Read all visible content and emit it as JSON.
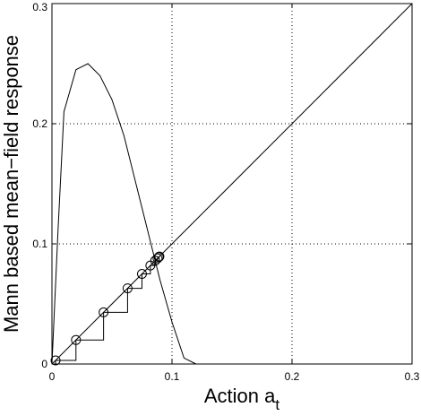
{
  "chart_data": {
    "type": "line",
    "xlabel": "Action a",
    "xlabel_subscript": "t",
    "ylabel": "Mann based mean−field response",
    "xlim": [
      0,
      0.3
    ],
    "ylim": [
      0,
      0.3
    ],
    "grid": true,
    "xticks": [
      0,
      0.1,
      0.2,
      0.3
    ],
    "xtick_labels": [
      "0",
      "0.1",
      "0.2",
      "0.3"
    ],
    "yticks": [
      0,
      0.1,
      0.2,
      0.3
    ],
    "ytick_labels": [
      "0",
      "0.1",
      "0.2",
      "0.3"
    ],
    "series": [
      {
        "kind": "response-curve",
        "x": [
          0,
          0.005,
          0.01,
          0.02,
          0.03,
          0.04,
          0.05,
          0.06,
          0.07,
          0.08,
          0.09,
          0.1,
          0.11,
          0.12
        ],
        "y": [
          0,
          0.11,
          0.21,
          0.245,
          0.25,
          0.24,
          0.22,
          0.19,
          0.15,
          0.11,
          0.07,
          0.035,
          0.005,
          0
        ]
      },
      {
        "kind": "identity-line",
        "x": [
          0,
          0.3
        ],
        "y": [
          0,
          0.3
        ]
      },
      {
        "kind": "cobweb-iteration",
        "x": [
          0.003,
          0.02,
          0.043,
          0.063,
          0.075,
          0.082,
          0.086,
          0.088,
          0.089,
          0.0895
        ],
        "y": [
          0.003,
          0.02,
          0.043,
          0.063,
          0.075,
          0.082,
          0.086,
          0.088,
          0.089,
          0.0895
        ]
      }
    ]
  }
}
